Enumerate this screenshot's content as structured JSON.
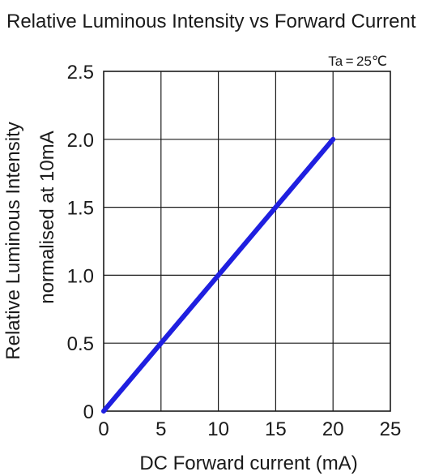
{
  "chart_data": {
    "type": "line",
    "title": "Relative Luminous Intensity vs Forward Current",
    "xlabel": "DC Forward current (mA)",
    "ylabel": "Relative Luminous Intensity",
    "ylabel_line2": "normalised at 10mA",
    "annotation": "Ta = 25℃",
    "xlim": [
      0,
      25
    ],
    "ylim": [
      0,
      2.5
    ],
    "x_ticks": [
      "0",
      "5",
      "10",
      "15",
      "20",
      "25"
    ],
    "y_ticks": [
      "0",
      "0.5",
      "1.0",
      "1.5",
      "2.0",
      "2.5"
    ],
    "grid": true,
    "series": [
      {
        "color": "#1f1fe0",
        "x": [
          0,
          5,
          10,
          15,
          20
        ],
        "y": [
          0,
          0.5,
          1.0,
          1.5,
          2.0
        ]
      }
    ]
  }
}
